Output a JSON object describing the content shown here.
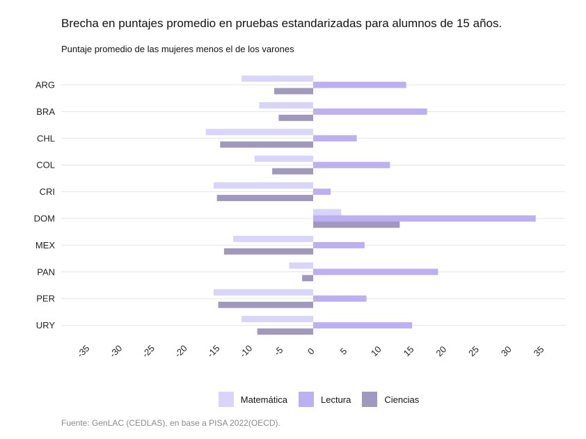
{
  "title": "Brecha en puntajes promedio en pruebas estandarizadas para alumnos de 15 años.",
  "subtitle": "Puntaje promedio de las mujeres menos el de los varones",
  "caption": "Fuente: GenLAC (CEDLAS), en base a PISA 2022(OECD).",
  "chart_data": {
    "type": "bar",
    "orientation": "horizontal",
    "categories": [
      "ARG",
      "BRA",
      "CHL",
      "COL",
      "CRI",
      "DOM",
      "MEX",
      "PAN",
      "PER",
      "URY"
    ],
    "series": [
      {
        "name": "Matemática",
        "color": "#d9d4fb",
        "values": [
          -11,
          -8.3,
          -16.5,
          -9,
          -15.3,
          4.3,
          -12.3,
          -3.7,
          -15.3,
          -11
        ]
      },
      {
        "name": "Lectura",
        "color": "#bdb0f2",
        "values": [
          14.3,
          17.5,
          6.7,
          11.8,
          2.7,
          34.2,
          7.9,
          19.2,
          8.2,
          15.2
        ]
      },
      {
        "name": "Ciencias",
        "color": "#a199bd",
        "values": [
          -6,
          -5.3,
          -14.3,
          -6.3,
          -14.8,
          13.3,
          -13.7,
          -1.7,
          -14.6,
          -8.6
        ]
      }
    ],
    "xlim": [
      -35,
      35
    ],
    "xticks": [
      "-35",
      "-30",
      "-25",
      "-20",
      "-15",
      "-10",
      "-5",
      "0",
      "5",
      "10",
      "15",
      "20",
      "25",
      "30",
      "35"
    ],
    "legend_position": "bottom",
    "grid": "horizontal"
  }
}
